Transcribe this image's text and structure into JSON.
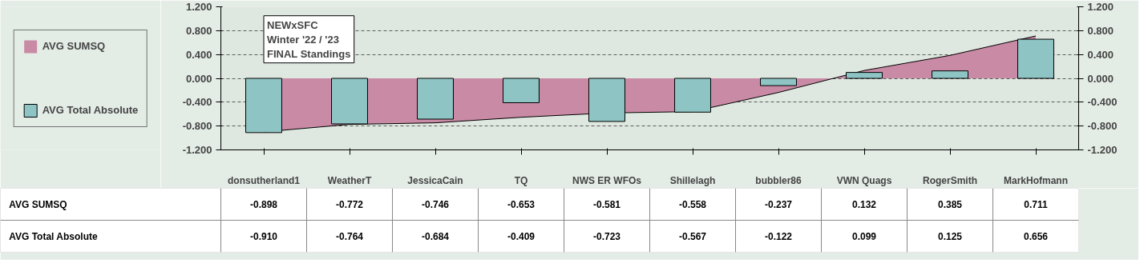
{
  "chart_data": {
    "type": "bar",
    "title": "NEWxSFC\nWinter '22 / '23\nFINAL Standings",
    "categories": [
      "donsutherland1",
      "WeatherT",
      "JessicaCain",
      "TQ",
      "NWS ER WFOs",
      "Shillelagh",
      "bubbler86",
      "VWN Quags",
      "RogerSmith",
      "MarkHofmann"
    ],
    "series": [
      {
        "name": "AVG SUMSQ",
        "type": "area",
        "color": "#c98aa5",
        "values": [
          -0.898,
          -0.772,
          -0.746,
          -0.653,
          -0.581,
          -0.558,
          -0.237,
          0.132,
          0.385,
          0.711
        ]
      },
      {
        "name": "AVG Total Absolute",
        "color": "#8fc4c4",
        "values": [
          -0.91,
          -0.764,
          -0.684,
          -0.409,
          -0.723,
          -0.567,
          -0.122,
          0.099,
          0.125,
          0.656
        ],
        "value_labels": [
          "-0.910",
          "-0.764",
          "-0.684",
          "-0.409",
          "-0.723",
          "-0.567",
          "-0.122",
          "0.099",
          "0.125",
          "0.656"
        ]
      }
    ],
    "ylim": [
      -1.2,
      1.2
    ],
    "yticks": [
      {
        "value": -1.2,
        "label": "-1.200"
      },
      {
        "value": -0.8,
        "label": "-0.800"
      },
      {
        "value": -0.4,
        "label": "-0.400"
      },
      {
        "value": 0,
        "label": "0.000"
      },
      {
        "value": 0.4,
        "label": "0.400"
      },
      {
        "value": 0.8,
        "label": "0.800"
      },
      {
        "value": 1.2,
        "label": "1.200"
      }
    ],
    "y2lim": [
      -1.2,
      1.2
    ],
    "y2ticks": [
      {
        "value": -1.2,
        "label": "-1.200"
      },
      {
        "value": -0.8,
        "label": "-0.800"
      },
      {
        "value": -0.4,
        "label": "-0.400"
      },
      {
        "value": 0,
        "label": "0.000"
      },
      {
        "value": 0.4,
        "label": "0.400"
      },
      {
        "value": 0.8,
        "label": "0.800"
      },
      {
        "value": 1.2,
        "label": "1.200"
      }
    ],
    "grid": "y",
    "legend": "left",
    "data_labels": true
  }
}
